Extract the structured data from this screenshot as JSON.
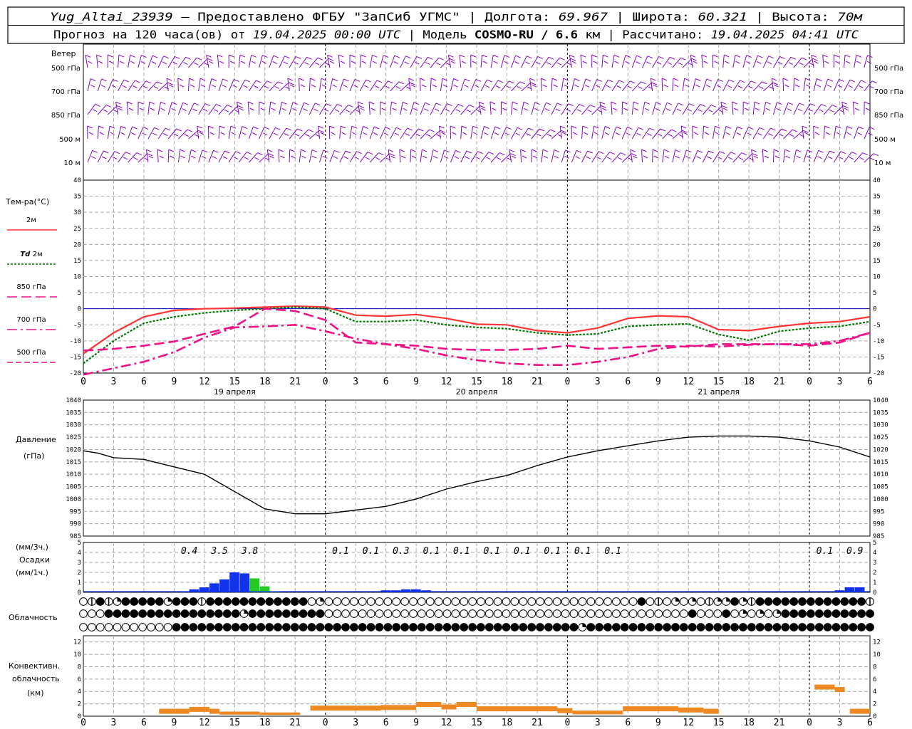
{
  "header": {
    "station": "Yug_Altai_23939",
    "provider": "– Предоставлено ФГБУ \"ЗапСиб УГМС\"",
    "lon_label": "Долгота:",
    "lon": "69.967",
    "lat_label": "Широта:",
    "lat": "60.321",
    "alt_label": "Высота:",
    "alt": "70м",
    "forecast_label": "Прогноз на 120 часа(ов) от",
    "forecast_time": "19.04.2025 00:00 UTC",
    "model_label": "Модель",
    "model": "COSMO-RU / 6.6",
    "model_unit": "км",
    "calc_label": "Рассчитано:",
    "calc_time": "19.04.2025 04:41 UTC"
  },
  "colors": {
    "wind": "#8800cc",
    "t2m": "#ff3333",
    "td2m": "#007700",
    "levels": "#ee1188",
    "pressure": "#000000",
    "precip_rain": "#1133ee",
    "precip_snow": "#22cc22",
    "convective": "#ee8822",
    "zero_line": "#0000cc"
  },
  "chart_data": [
    {
      "id": "wind",
      "type": "barbs",
      "title": "Ветер",
      "levels": [
        "500 гПа",
        "700 гПа",
        "850 гПа",
        "500 м",
        "10 м"
      ]
    },
    {
      "id": "temperature",
      "type": "line",
      "ylabel": "Тем-ра(°С)",
      "ylim": [
        -20,
        40
      ],
      "yticks": [
        -20,
        -15,
        -10,
        -5,
        0,
        5,
        10,
        15,
        20,
        25,
        30,
        35,
        40
      ],
      "x_hours": [
        0,
        3,
        6,
        9,
        12,
        15,
        18,
        21,
        24,
        27,
        30,
        33,
        36,
        39,
        42,
        45,
        48,
        51,
        54,
        57,
        60,
        63,
        66,
        69,
        72,
        75,
        78
      ],
      "series": [
        {
          "name": "2м",
          "label_prefix": "",
          "style": "solid",
          "values": [
            -14,
            -7.5,
            -2.5,
            -0.5,
            0,
            0.2,
            0.5,
            0.8,
            0.5,
            -2,
            -2.3,
            -1.8,
            -3,
            -4.8,
            -5,
            -6.8,
            -7.5,
            -6,
            -3,
            -2.2,
            -2.5,
            -6.5,
            -6.8,
            -5.5,
            -4.5,
            -4,
            -2.5
          ]
        },
        {
          "name": "2м",
          "label_prefix": "Td",
          "style": "dotted",
          "values": [
            -17,
            -10,
            -4.5,
            -2.5,
            -1.3,
            -0.5,
            0,
            0.5,
            0,
            -4,
            -4,
            -3.5,
            -5,
            -5.8,
            -6.2,
            -7.5,
            -8.2,
            -7.8,
            -5.5,
            -5,
            -4.7,
            -8,
            -9.8,
            -7,
            -6,
            -5.5,
            -4
          ]
        },
        {
          "name": "850 гПа",
          "label_prefix": "",
          "style": "dash",
          "values": [
            -13,
            -12.5,
            -11.5,
            -10.2,
            -7.8,
            -5.5,
            0,
            -0.7,
            -3.5,
            -10.5,
            -11,
            -11.5,
            -12.5,
            -12.8,
            -12.8,
            -12.5,
            -11.5,
            -12.5,
            -12,
            -11.5,
            -11.8,
            -11,
            -11,
            -11,
            -11.5,
            -10.5,
            -7.5
          ]
        },
        {
          "name": "700 гПа",
          "label_prefix": "",
          "style": "dashdot",
          "values": [
            -20.5,
            -18.5,
            -16.5,
            -13.5,
            -9,
            -5.8,
            -5.5,
            -5,
            -7,
            -9.3,
            -11,
            -12.5,
            -14.5,
            -16,
            -17,
            -17.5,
            -17.5,
            -16.5,
            -15,
            -12.5,
            -11.5,
            -11.8,
            -11.2,
            -11,
            -11,
            -10,
            -7.5
          ]
        },
        {
          "name": "500 гПа",
          "label_prefix": "",
          "style": "longdash",
          "values": []
        }
      ],
      "zero_line": 0
    },
    {
      "id": "pressure",
      "type": "line",
      "ylabel": "Давление",
      "ylabel2": "(гПа)",
      "ylim": [
        985,
        1040
      ],
      "yticks": [
        985,
        990,
        995,
        1000,
        1005,
        1010,
        1015,
        1020,
        1025,
        1030,
        1035,
        1040
      ],
      "x_hours": [
        0,
        1.5,
        3,
        6,
        9,
        12,
        15,
        18,
        21,
        24,
        27,
        30,
        33,
        36,
        39,
        42,
        45,
        48,
        51,
        54,
        57,
        60,
        63,
        66,
        69,
        72,
        75,
        78
      ],
      "values": [
        1019.5,
        1018.5,
        1016.7,
        1016,
        1013,
        1010,
        1003,
        996,
        994,
        994,
        995.5,
        997,
        1000,
        1004,
        1007,
        1009.5,
        1013.5,
        1017,
        1019.5,
        1021.5,
        1023.5,
        1025,
        1025.5,
        1025.5,
        1025,
        1023.5,
        1021,
        1017
      ]
    },
    {
      "id": "precip",
      "type": "bar",
      "ylabel": "(мм/3ч.)",
      "ylabel2": "Осадки",
      "ylabel3": "(мм/1ч.)",
      "ylim": [
        0,
        5
      ],
      "yticks": [
        0,
        1,
        2,
        3,
        4,
        5
      ],
      "totals": [
        {
          "hour": 10.5,
          "text": "0.4"
        },
        {
          "hour": 13.5,
          "text": "3.5"
        },
        {
          "hour": 16.5,
          "text": "3.8"
        },
        {
          "hour": 25.5,
          "text": "0.1"
        },
        {
          "hour": 28.5,
          "text": "0.1"
        },
        {
          "hour": 31.5,
          "text": "0.3"
        },
        {
          "hour": 34.5,
          "text": "0.1"
        },
        {
          "hour": 37.5,
          "text": "0.1"
        },
        {
          "hour": 40.5,
          "text": "0.1"
        },
        {
          "hour": 43.5,
          "text": "0.1"
        },
        {
          "hour": 46.5,
          "text": "0.1"
        },
        {
          "hour": 49.5,
          "text": "0.1"
        },
        {
          "hour": 52.5,
          "text": "0.1"
        },
        {
          "hour": 73.5,
          "text": "0.1"
        },
        {
          "hour": 76.5,
          "text": "0.9"
        }
      ],
      "bars": [
        {
          "hour": 10,
          "value": 0.1,
          "kind": "rain"
        },
        {
          "hour": 11,
          "value": 0.3,
          "kind": "rain"
        },
        {
          "hour": 12,
          "value": 0.5,
          "kind": "rain"
        },
        {
          "hour": 13,
          "value": 0.9,
          "kind": "rain"
        },
        {
          "hour": 14,
          "value": 1.3,
          "kind": "rain"
        },
        {
          "hour": 15,
          "value": 2.0,
          "kind": "rain"
        },
        {
          "hour": 16,
          "value": 1.9,
          "kind": "rain"
        },
        {
          "hour": 17,
          "value": 1.4,
          "kind": "snow"
        },
        {
          "hour": 18,
          "value": 0.6,
          "kind": "snow"
        },
        {
          "hour": 19,
          "value": 0.1,
          "kind": "snow"
        },
        {
          "hour": 30,
          "value": 0.2,
          "kind": "rain"
        },
        {
          "hour": 31,
          "value": 0.2,
          "kind": "rain"
        },
        {
          "hour": 32,
          "value": 0.3,
          "kind": "rain"
        },
        {
          "hour": 33,
          "value": 0.3,
          "kind": "rain"
        },
        {
          "hour": 34,
          "value": 0.2,
          "kind": "rain"
        },
        {
          "hour": 75,
          "value": 0.2,
          "kind": "rain"
        },
        {
          "hour": 76,
          "value": 0.5,
          "kind": "rain"
        },
        {
          "hour": 77,
          "value": 0.5,
          "kind": "rain"
        }
      ]
    },
    {
      "id": "cloud",
      "type": "symbols",
      "ylabel": "Облачность",
      "rows": [
        "0131233333233313333333333330200000000000000000000000000000000000003010202012232133333333333331",
        "0003333333333333333233333333300000000000000000000000000000000000000000003000302020233333333333",
        "0000000000033333333333333333333333333333333333333333333333323333333333333333333333333333333333"
      ]
    },
    {
      "id": "convective",
      "type": "bar",
      "ylabel": "Конвективн.",
      "ylabel2": "облачность",
      "ylabel3": "(км)",
      "ylim": [
        0,
        13
      ],
      "yticks": [
        0,
        2,
        4,
        6,
        8,
        10,
        12
      ],
      "segments": [
        {
          "from": 7.5,
          "to": 10.5,
          "value": 0.8
        },
        {
          "from": 10.5,
          "to": 12.5,
          "value": 1.1
        },
        {
          "from": 12.5,
          "to": 13.5,
          "value": 0.8
        },
        {
          "from": 13.5,
          "to": 17.5,
          "value": 0.5
        },
        {
          "from": 17.5,
          "to": 21.5,
          "value": 0.4
        },
        {
          "from": 22.5,
          "to": 29.5,
          "value": 1.3
        },
        {
          "from": 29.5,
          "to": 33.0,
          "value": 1.4
        },
        {
          "from": 33.0,
          "to": 35.5,
          "value": 1.9
        },
        {
          "from": 35.5,
          "to": 37.0,
          "value": 1.5
        },
        {
          "from": 37.0,
          "to": 39.0,
          "value": 1.9
        },
        {
          "from": 39.0,
          "to": 47.0,
          "value": 1.2
        },
        {
          "from": 47.0,
          "to": 48.5,
          "value": 0.9
        },
        {
          "from": 48.5,
          "to": 53.5,
          "value": 0.6
        },
        {
          "from": 53.5,
          "to": 59.0,
          "value": 1.2
        },
        {
          "from": 59.0,
          "to": 61.5,
          "value": 1.0
        },
        {
          "from": 61.5,
          "to": 63.0,
          "value": 0.8
        },
        {
          "from": 72.5,
          "to": 74.5,
          "value": 4.7
        },
        {
          "from": 74.5,
          "to": 75.5,
          "value": 4.3
        },
        {
          "from": 76.0,
          "to": 78.0,
          "value": 0.8
        }
      ]
    }
  ],
  "axis": {
    "hours": [
      "0",
      "3",
      "6",
      "9",
      "12",
      "15",
      "18",
      "21",
      "0",
      "3",
      "6",
      "9",
      "12",
      "15",
      "18",
      "21",
      "0",
      "3",
      "6",
      "9",
      "12",
      "15",
      "18",
      "21",
      "0",
      "3",
      "6"
    ],
    "days": [
      {
        "hour": 15,
        "label": "19 апреля"
      },
      {
        "hour": 39,
        "label": "20 апреля"
      },
      {
        "hour": 63,
        "label": "21 апреля"
      }
    ]
  }
}
